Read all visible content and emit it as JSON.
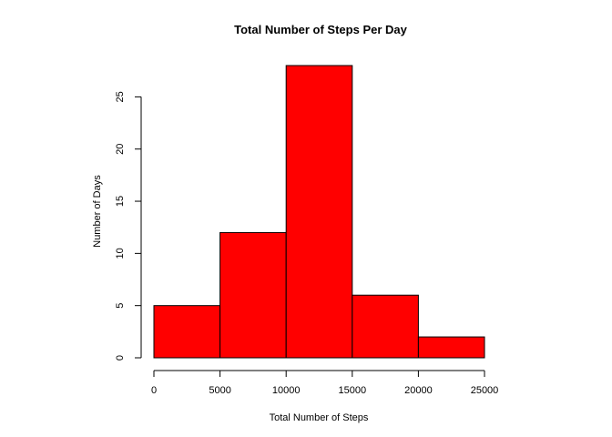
{
  "chart_data": {
    "type": "bar",
    "title": "Total Number of Steps Per Day",
    "xlabel": "Total Number of Steps",
    "ylabel": "Number of Days",
    "bins": [
      {
        "start": 0,
        "end": 5000,
        "count": 5
      },
      {
        "start": 5000,
        "end": 10000,
        "count": 12
      },
      {
        "start": 10000,
        "end": 15000,
        "count": 28
      },
      {
        "start": 15000,
        "end": 20000,
        "count": 6
      },
      {
        "start": 20000,
        "end": 25000,
        "count": 2
      }
    ],
    "xlim": [
      0,
      25000
    ],
    "ylim": [
      0,
      28
    ],
    "xticks": [
      0,
      5000,
      10000,
      15000,
      20000,
      25000
    ],
    "yticks": [
      0,
      5,
      10,
      15,
      20,
      25
    ],
    "bar_color": "#ff0000",
    "bar_border_color": "#000000",
    "grid": false,
    "legend": "none"
  }
}
